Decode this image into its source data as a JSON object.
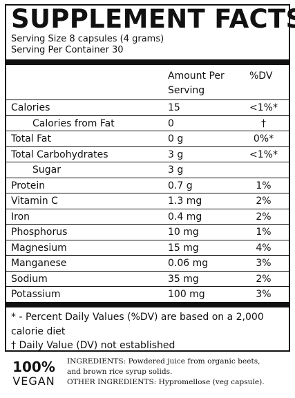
{
  "title": "SUPPLEMENT FACTS",
  "serving_size": "Serving Size 8 capsules (4 grams)",
  "servings_per_container": "Serving Per Container 30",
  "headers": {
    "amount_line1": "Amount Per",
    "amount_line2": "Serving",
    "dv": "%DV"
  },
  "rows": [
    {
      "name": "Calories",
      "amount": "15",
      "dv": "<1%*"
    },
    {
      "name": "Calories from Fat",
      "amount": "0",
      "dv": "†"
    },
    {
      "name": "Total Fat",
      "amount": "0 g",
      "dv": "0%*"
    },
    {
      "name": "Total Carbohydrates",
      "amount": "3 g",
      "dv": "<1%*"
    },
    {
      "name": "Sugar",
      "amount": "3 g",
      "dv": ""
    },
    {
      "name": "Protein",
      "amount": "0.7 g",
      "dv": "1%"
    },
    {
      "name": "Vitamin C",
      "amount": "1.3 mg",
      "dv": "2%"
    },
    {
      "name": "Iron",
      "amount": "0.4 mg",
      "dv": "2%"
    },
    {
      "name": "Phosphorus",
      "amount": "10 mg",
      "dv": "1%"
    },
    {
      "name": "Magnesium",
      "amount": "15 mg",
      "dv": "4%"
    },
    {
      "name": "Manganese",
      "amount": "0.06 mg",
      "dv": "3%"
    },
    {
      "name": "Sodium",
      "amount": "35 mg",
      "dv": "2%"
    },
    {
      "name": "Potassium",
      "amount": "100 mg",
      "dv": "3%"
    }
  ],
  "footnotes": {
    "dv_note": "* - Percent Daily Values (%DV) are based on a 2,000 calorie diet",
    "not_established": "† Daily Value (DV) not established"
  },
  "vegan_badge": {
    "percent": "100%",
    "word": "VEGAN"
  },
  "ingredients": {
    "line1": "INGREDIENTS: Powdered juice from organic beets,",
    "line2": "and brown rice syrup solids.",
    "other": "OTHER INGREDIENTS: Hypromellose (veg capsule)."
  }
}
